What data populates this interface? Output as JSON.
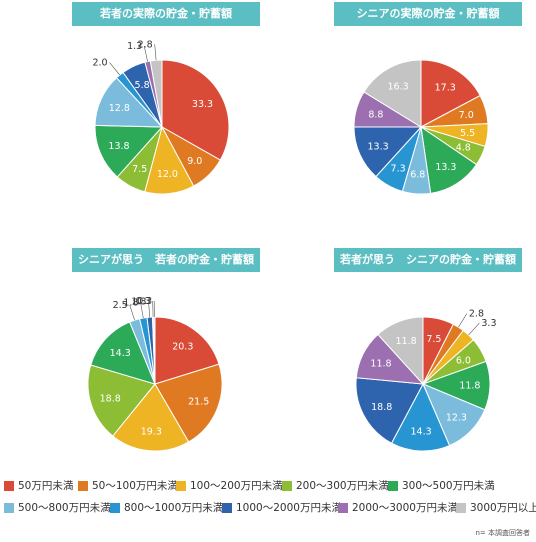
{
  "colors": [
    "#d94a37",
    "#e07a22",
    "#eeb424",
    "#8cbd34",
    "#2caa58",
    "#7bbcdc",
    "#2895d3",
    "#2e63ad",
    "#9b6fb0",
    "#c4c4c4"
  ],
  "legend": [
    "50万円未満",
    "50～100万円未満",
    "100～200万円未満",
    "200～300万円未満",
    "300～500万円未満",
    "500～800万円未満",
    "800～1000万円未満",
    "1000～2000万円未満",
    "2000～3000万円未満",
    "3000万円以上"
  ],
  "note": "n= 本調査回答者",
  "chart_data": [
    {
      "type": "pie",
      "title": "若者の実際の貯金・貯蓄額",
      "categories": [
        "50万円未満",
        "50～100万円未満",
        "100～200万円未満",
        "200～300万円未満",
        "300～500万円未満",
        "500～800万円未満",
        "800～1000万円未満",
        "1000～2000万円未満",
        "2000～3000万円未満",
        "3000万円以上"
      ],
      "values": [
        33.3,
        9.0,
        12.0,
        7.5,
        13.8,
        12.8,
        2.0,
        5.8,
        1.3,
        2.8
      ]
    },
    {
      "type": "pie",
      "title": "シニアの実際の貯金・貯蓄額",
      "categories": [
        "50万円未満",
        "50～100万円未満",
        "100～200万円未満",
        "200～300万円未満",
        "300～500万円未満",
        "500～800万円未満",
        "800～1000万円未満",
        "1000～2000万円未満",
        "2000～3000万円未満",
        "3000万円以上"
      ],
      "values": [
        17.3,
        7.0,
        5.5,
        4.8,
        13.3,
        6.8,
        7.3,
        13.3,
        8.8,
        16.3
      ]
    },
    {
      "type": "pie",
      "title": "シニアが思う　若者の貯金・貯蓄額",
      "categories": [
        "50万円未満",
        "50～100万円未満",
        "100～200万円未満",
        "200～300万円未満",
        "300～500万円未満",
        "500～800万円未満",
        "800～1000万円未満",
        "1000～2000万円未満",
        "2000～3000万円未満",
        "3000万円以上"
      ],
      "values": [
        20.3,
        21.5,
        19.3,
        18.8,
        14.3,
        2.5,
        1.8,
        1.3,
        0.3,
        0.3
      ]
    },
    {
      "type": "pie",
      "title": "若者が思う　シニアの貯金・貯蓄額",
      "categories": [
        "50万円未満",
        "50～100万円未満",
        "100～200万円未満",
        "200～300万円未満",
        "300～500万円未満",
        "500～800万円未満",
        "800～1000万円未満",
        "1000～2000万円未満",
        "2000～3000万円未満",
        "3000万円以上"
      ],
      "values": [
        7.5,
        2.8,
        3.3,
        6.0,
        11.8,
        12.3,
        14.3,
        18.8,
        11.8,
        11.8
      ]
    }
  ]
}
